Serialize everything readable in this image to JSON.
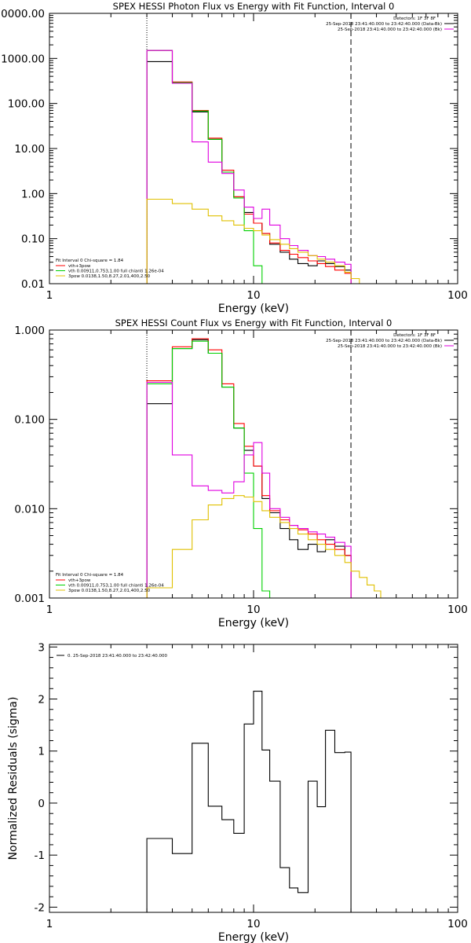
{
  "colors": {
    "data": "#000000",
    "total": "#ff0000",
    "thermal": "#00d000",
    "powerlaw": "#e0c000",
    "background": "#e000e0"
  },
  "chart_data": [
    {
      "type": "line",
      "title": "SPEX HESSI Photon Flux vs Energy with Fit Function, Interval 0",
      "xlabel": "Energy (keV)",
      "ylabel": "",
      "xscale": "log",
      "yscale": "log",
      "xlim": [
        1,
        100
      ],
      "ylim": [
        0.01,
        10000
      ],
      "xticks": [
        {
          "v": 1,
          "label": "1"
        },
        {
          "v": 10,
          "label": "10"
        },
        {
          "v": 100,
          "label": "100"
        }
      ],
      "yticks": [
        {
          "v": 0.01,
          "label": "0.01"
        },
        {
          "v": 0.1,
          "label": "0.10"
        },
        {
          "v": 1,
          "label": "1.00"
        },
        {
          "v": 10,
          "label": "10.00"
        },
        {
          "v": 100,
          "label": "100.00"
        },
        {
          "v": 1000,
          "label": "1000.00"
        },
        {
          "v": 10000,
          "label": "10000.00"
        }
      ],
      "vlines": [
        {
          "x": 3,
          "style": "dotted"
        },
        {
          "x": 30,
          "style": "dashed"
        }
      ],
      "legend_tr": {
        "header": "Detectors: 1F 3F 8F",
        "entries": [
          {
            "text": "25-Sep-2018 23:41:40.000 to 23:42:40.000 (Data-Bk)",
            "color": "#000000"
          },
          {
            "text": "25-Sep-2018 23:41:40.000 to 23:42:40.000 (Bk)",
            "color": "#e000e0"
          }
        ]
      },
      "legend_bl": {
        "header": "Fit Interval 0   Chi-square = 1.84",
        "entries": [
          {
            "text": "vth+3pow",
            "color": "#ff0000"
          },
          {
            "text": "vth 0.00911,0.753,1.00   full chianti 1.26e-04",
            "color": "#00d000"
          },
          {
            "text": "3pow 0.0138,1.50,8.27,2.01,400,2.50",
            "color": "#e0c000"
          }
        ]
      },
      "series": [
        {
          "color": "#000000",
          "edges": [
            3,
            4,
            5,
            6,
            7,
            8,
            9,
            10,
            11,
            12,
            13.5,
            15,
            16.5,
            18.5,
            20.5,
            22.5,
            25,
            28,
            30
          ],
          "values": [
            850,
            290,
            65,
            16,
            3,
            0.85,
            0.38,
            0.22,
            0.13,
            0.075,
            0.05,
            0.035,
            0.028,
            0.025,
            0.032,
            0.028,
            0.024,
            0.02
          ]
        },
        {
          "color": "#ff0000",
          "edges": [
            3,
            4,
            5,
            6,
            7,
            8,
            9,
            10,
            11,
            12,
            13.5,
            15,
            16.5,
            18.5,
            20.5,
            22.5,
            25,
            28,
            30
          ],
          "values": [
            1500,
            300,
            70,
            17,
            3.3,
            0.85,
            0.35,
            0.22,
            0.13,
            0.08,
            0.055,
            0.045,
            0.038,
            0.032,
            0.028,
            0.024,
            0.02,
            0.017
          ]
        },
        {
          "color": "#00d000",
          "edges": [
            3,
            4,
            5,
            6,
            7,
            8,
            9,
            10,
            11
          ],
          "values": [
            1500,
            290,
            68,
            16,
            3,
            0.8,
            0.15,
            0.025
          ]
        },
        {
          "color": "#e000e0",
          "edges": [
            3,
            4,
            5,
            6,
            7,
            8,
            9,
            10,
            11,
            12,
            13.5,
            15,
            16.5,
            18.5,
            20.5,
            22.5,
            25,
            28,
            30
          ],
          "values": [
            1500,
            280,
            14,
            5,
            2.8,
            1.2,
            0.5,
            0.28,
            0.45,
            0.2,
            0.1,
            0.07,
            0.055,
            0.042,
            0.04,
            0.035,
            0.03,
            0.027
          ]
        },
        {
          "color": "#e0c000",
          "edges": [
            3,
            4,
            5,
            6,
            7,
            8,
            9,
            10,
            11,
            12,
            13.5,
            15,
            16.5,
            18.5,
            20.5,
            22.5,
            25,
            28,
            30,
            33,
            36
          ],
          "values": [
            0.75,
            0.6,
            0.45,
            0.32,
            0.25,
            0.2,
            0.17,
            0.15,
            0.12,
            0.095,
            0.075,
            0.06,
            0.05,
            0.042,
            0.035,
            0.03,
            0.025,
            0.018,
            0.013,
            0.01
          ]
        }
      ]
    },
    {
      "type": "line",
      "title": "SPEX HESSI Count Flux vs Energy with Fit Function, Interval 0",
      "xlabel": "Energy (keV)",
      "ylabel": "",
      "xscale": "log",
      "yscale": "log",
      "xlim": [
        1,
        100
      ],
      "ylim": [
        0.001,
        1
      ],
      "xticks": [
        {
          "v": 1,
          "label": "1"
        },
        {
          "v": 10,
          "label": "10"
        },
        {
          "v": 100,
          "label": "100"
        }
      ],
      "yticks": [
        {
          "v": 0.001,
          "label": "0.001"
        },
        {
          "v": 0.01,
          "label": "0.010"
        },
        {
          "v": 0.1,
          "label": "0.100"
        },
        {
          "v": 1,
          "label": "1.000"
        }
      ],
      "vlines": [
        {
          "x": 3,
          "style": "dotted"
        },
        {
          "x": 30,
          "style": "dashed"
        }
      ],
      "legend_tr": {
        "header": "Detectors: 1F 3F 8F",
        "entries": [
          {
            "text": "25-Sep-2018 23:41:40.000 to 23:42:40.000 (Data-Bk)",
            "color": "#000000"
          },
          {
            "text": "25-Sep-2018 23:41:40.000 to 23:42:40.000 (Bk)",
            "color": "#e000e0"
          }
        ]
      },
      "legend_bl": {
        "header": "Fit Interval 0   Chi-square = 1.84",
        "entries": [
          {
            "text": "vth+3pow",
            "color": "#ff0000"
          },
          {
            "text": "vth 0.00911,0.753,1.00   full chianti 1.26e-04",
            "color": "#00d000"
          },
          {
            "text": "3pow 0.0138,1.50,8.27,2.01,400,2.50",
            "color": "#e0c000"
          }
        ]
      },
      "series": [
        {
          "color": "#000000",
          "edges": [
            3,
            4,
            5,
            6,
            7,
            8,
            9,
            10,
            11,
            12,
            13.5,
            15,
            16.5,
            18.5,
            20.5,
            22.5,
            25,
            28,
            30
          ],
          "values": [
            0.15,
            0.62,
            0.78,
            0.55,
            0.23,
            0.08,
            0.045,
            0.03,
            0.013,
            0.009,
            0.006,
            0.0045,
            0.0035,
            0.004,
            0.0033,
            0.0045,
            0.0038,
            0.003
          ]
        },
        {
          "color": "#ff0000",
          "edges": [
            3,
            4,
            5,
            6,
            7,
            8,
            9,
            10,
            11,
            12,
            13.5,
            15,
            16.5,
            18.5,
            20.5,
            22.5,
            25,
            28,
            30
          ],
          "values": [
            0.27,
            0.65,
            0.8,
            0.6,
            0.25,
            0.09,
            0.05,
            0.03,
            0.014,
            0.0095,
            0.0075,
            0.0065,
            0.0058,
            0.0052,
            0.0045,
            0.004,
            0.0035,
            0.003
          ]
        },
        {
          "color": "#00d000",
          "edges": [
            3,
            4,
            5,
            6,
            7,
            8,
            9,
            10,
            11,
            12
          ],
          "values": [
            0.25,
            0.62,
            0.75,
            0.55,
            0.23,
            0.08,
            0.025,
            0.006,
            0.0012
          ]
        },
        {
          "color": "#e000e0",
          "edges": [
            3,
            4,
            5,
            6,
            7,
            8,
            9,
            10,
            11,
            12,
            13.5,
            15,
            16.5,
            18.5,
            20.5,
            22.5,
            25,
            28,
            30
          ],
          "values": [
            0.26,
            0.04,
            0.018,
            0.016,
            0.015,
            0.02,
            0.04,
            0.055,
            0.025,
            0.01,
            0.008,
            0.0065,
            0.006,
            0.0055,
            0.0052,
            0.0048,
            0.0042,
            0.0038
          ]
        },
        {
          "color": "#e0c000",
          "edges": [
            3,
            4,
            5,
            6,
            7,
            8,
            9,
            10,
            11,
            12,
            13.5,
            15,
            16.5,
            18.5,
            20.5,
            22.5,
            25,
            28,
            30,
            33,
            36,
            39,
            42,
            45
          ],
          "values": [
            0.0013,
            0.0035,
            0.0075,
            0.011,
            0.013,
            0.014,
            0.0135,
            0.012,
            0.0095,
            0.008,
            0.007,
            0.006,
            0.0052,
            0.0045,
            0.004,
            0.0035,
            0.003,
            0.0025,
            0.002,
            0.0017,
            0.0014,
            0.0012,
            0.001
          ]
        }
      ]
    },
    {
      "type": "line",
      "title": "",
      "xlabel": "Energy (keV)",
      "ylabel": "Normalized Residuals (sigma)",
      "xscale": "log",
      "yscale": "linear",
      "xlim": [
        1,
        100
      ],
      "ylim": [
        -2.1,
        3.05
      ],
      "xticks": [
        {
          "v": 1,
          "label": "1"
        },
        {
          "v": 10,
          "label": "10"
        },
        {
          "v": 100,
          "label": "100"
        }
      ],
      "yticks": [
        {
          "v": -2,
          "label": "-2"
        },
        {
          "v": -1,
          "label": "-1"
        },
        {
          "v": 0,
          "label": "0"
        },
        {
          "v": 1,
          "label": "1"
        },
        {
          "v": 2,
          "label": "2"
        },
        {
          "v": 3,
          "label": "3"
        }
      ],
      "vlines": [],
      "legend_tl": {
        "entries": [
          {
            "text": "0. 25-Sep-2018 23:41:40.000 to 23:42:40.000",
            "color": "#000000"
          }
        ]
      },
      "series": [
        {
          "color": "#000000",
          "edges": [
            3,
            4,
            5,
            6,
            7,
            8,
            9,
            10,
            11,
            12,
            13.5,
            15,
            16.5,
            18.5,
            20.5,
            22.5,
            25,
            28,
            30
          ],
          "values": [
            -0.68,
            -0.97,
            1.15,
            -0.06,
            -0.32,
            -0.58,
            1.52,
            2.15,
            1.02,
            0.42,
            -1.24,
            -1.63,
            -1.72,
            0.42,
            -0.07,
            1.4,
            0.97,
            0.98
          ]
        }
      ]
    }
  ]
}
